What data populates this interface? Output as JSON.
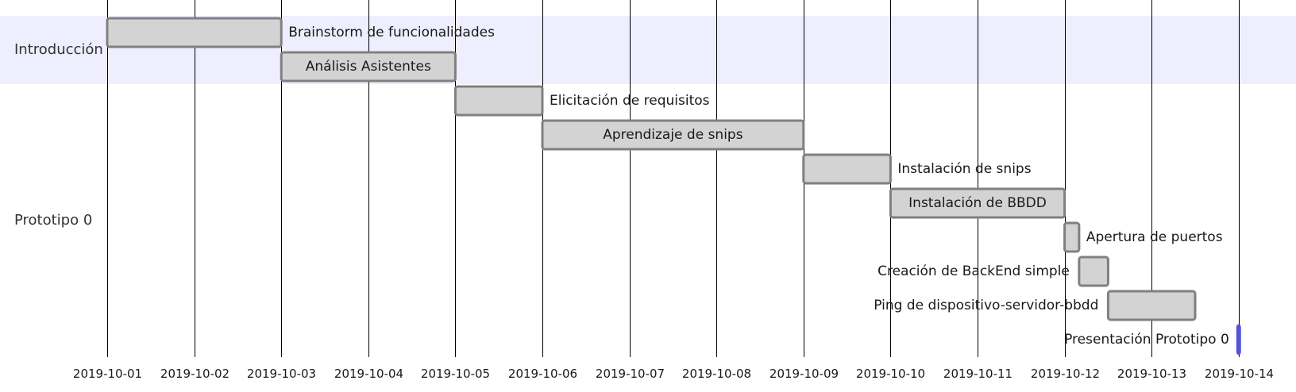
{
  "chart_data": {
    "type": "gantt",
    "sections": [
      {
        "name": "Introducción",
        "color": "#eeeeff"
      },
      {
        "name": "Prototipo 0",
        "color": "#ffffff"
      }
    ],
    "tasks": [
      {
        "name": "Brainstorm de funcionalidades",
        "section": "Introducción",
        "start": "2019-10-01",
        "end": "2019-10-03"
      },
      {
        "name": "Análisis Asistentes",
        "section": "Introducción",
        "start": "2019-10-03",
        "end": "2019-10-05"
      },
      {
        "name": "Elicitación de requisitos",
        "section": "Prototipo 0",
        "start": "2019-10-05",
        "end": "2019-10-06"
      },
      {
        "name": "Aprendizaje de snips",
        "section": "Prototipo 0",
        "start": "2019-10-06",
        "end": "2019-10-09"
      },
      {
        "name": "Instalación de snips",
        "section": "Prototipo 0",
        "start": "2019-10-09",
        "end": "2019-10-10"
      },
      {
        "name": "Instalación de BBDD",
        "section": "Prototipo 0",
        "start": "2019-10-10",
        "end": "2019-10-12"
      },
      {
        "name": "Apertura de puertos",
        "section": "Prototipo 0",
        "start": "2019-10-12 00:00",
        "end": "2019-10-12 04:00"
      },
      {
        "name": "Creación de BackEnd simple",
        "section": "Prototipo 0",
        "start": "2019-10-12 04:00",
        "end": "2019-10-12 12:00"
      },
      {
        "name": "Ping de dispositivo-servidor-bbdd",
        "section": "Prototipo 0",
        "start": "2019-10-12 12:00",
        "end": "2019-10-13 12:00"
      },
      {
        "name": "Presentación Prototipo 0",
        "section": "Prototipo 0",
        "start": "2019-10-14",
        "end": "2019-10-14",
        "milestone": true
      }
    ],
    "x_ticks": [
      "2019-10-01",
      "2019-10-02",
      "2019-10-03",
      "2019-10-04",
      "2019-10-05",
      "2019-10-06",
      "2019-10-07",
      "2019-10-08",
      "2019-10-09",
      "2019-10-10",
      "2019-10-11",
      "2019-10-12",
      "2019-10-13",
      "2019-10-14"
    ],
    "xlim": [
      "2019-10-01",
      "2019-10-14"
    ],
    "grid": true,
    "colors": {
      "bar_fill": "#d3d3d3",
      "bar_stroke": "#808080",
      "milestone_stroke": "#5555d4",
      "section_band": "#eeeeff"
    }
  }
}
